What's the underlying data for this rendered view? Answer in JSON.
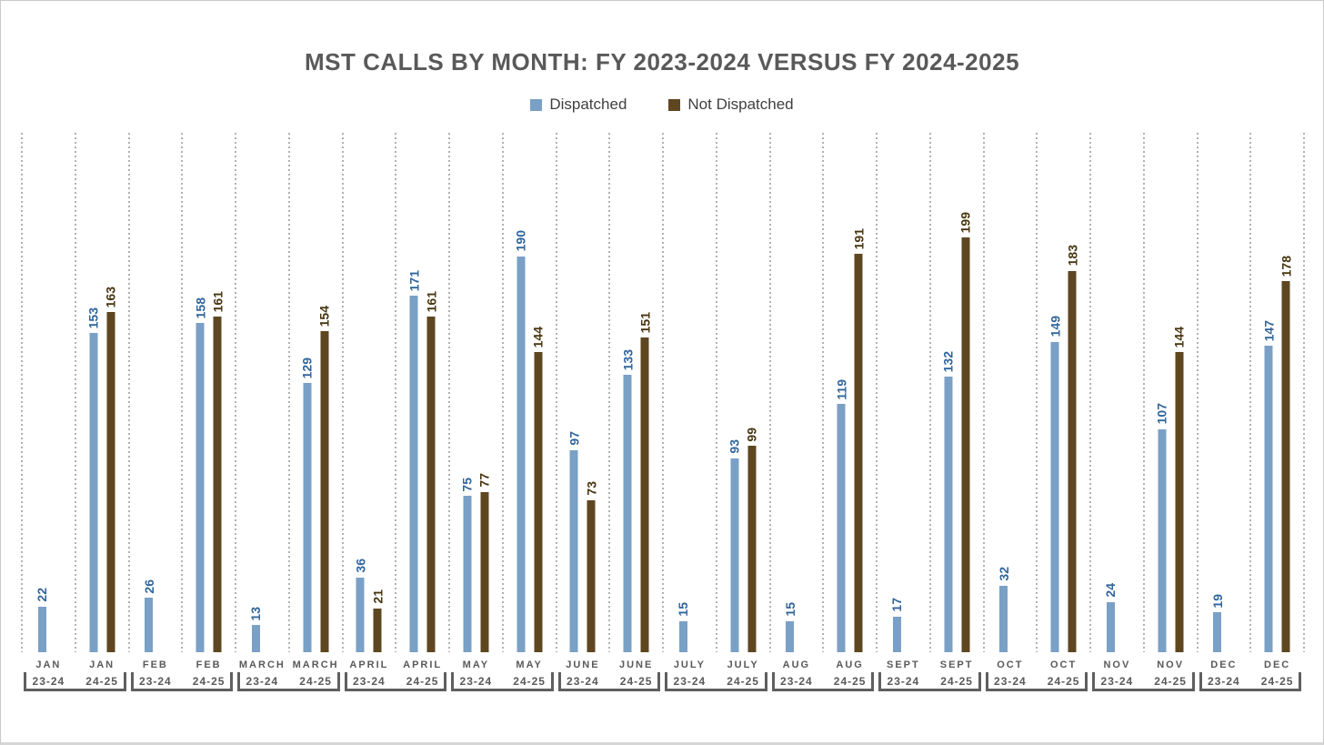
{
  "title": "MST CALLS BY MONTH: FY 2023-2024 VERSUS FY 2024-2025",
  "legend": {
    "items": [
      {
        "label": "Dispatched",
        "color": "#7AA0C6"
      },
      {
        "label": "Not Dispatched",
        "color": "#5E4720"
      }
    ]
  },
  "chart_data": {
    "type": "bar",
    "title": "MST CALLS BY MONTH: FY 2023-2024 VERSUS FY 2024-2025",
    "categories": [
      {
        "month": "JAN",
        "fy": "23-24"
      },
      {
        "month": "JAN",
        "fy": "24-25"
      },
      {
        "month": "FEB",
        "fy": "23-24"
      },
      {
        "month": "FEB",
        "fy": "24-25"
      },
      {
        "month": "MARCH",
        "fy": "23-24"
      },
      {
        "month": "MARCH",
        "fy": "24-25"
      },
      {
        "month": "APRIL",
        "fy": "23-24"
      },
      {
        "month": "APRIL",
        "fy": "24-25"
      },
      {
        "month": "MAY",
        "fy": "23-24"
      },
      {
        "month": "MAY",
        "fy": "24-25"
      },
      {
        "month": "JUNE",
        "fy": "23-24"
      },
      {
        "month": "JUNE",
        "fy": "24-25"
      },
      {
        "month": "JULY",
        "fy": "23-24"
      },
      {
        "month": "JULY",
        "fy": "24-25"
      },
      {
        "month": "AUG",
        "fy": "23-24"
      },
      {
        "month": "AUG",
        "fy": "24-25"
      },
      {
        "month": "SEPT",
        "fy": "23-24"
      },
      {
        "month": "SEPT",
        "fy": "24-25"
      },
      {
        "month": "OCT",
        "fy": "23-24"
      },
      {
        "month": "OCT",
        "fy": "24-25"
      },
      {
        "month": "NOV",
        "fy": "23-24"
      },
      {
        "month": "NOV",
        "fy": "24-25"
      },
      {
        "month": "DEC",
        "fy": "23-24"
      },
      {
        "month": "DEC",
        "fy": "24-25"
      }
    ],
    "series": [
      {
        "name": "Dispatched",
        "color": "#7AA0C6",
        "label_color": "#31659B",
        "values": [
          22,
          153,
          26,
          158,
          13,
          129,
          36,
          171,
          75,
          190,
          97,
          133,
          15,
          93,
          15,
          119,
          17,
          132,
          32,
          149,
          24,
          107,
          19,
          147
        ]
      },
      {
        "name": "Not Dispatched",
        "color": "#5E4720",
        "label_color": "#47340F",
        "values": [
          null,
          163,
          null,
          161,
          null,
          154,
          21,
          161,
          77,
          144,
          73,
          151,
          null,
          99,
          null,
          191,
          null,
          199,
          null,
          183,
          null,
          144,
          null,
          178
        ]
      }
    ],
    "ylim": [
      0,
      250
    ],
    "grid": "vertical-dotted",
    "legend_position": "top",
    "data_labels": "rotated-vertical-outside-end"
  }
}
